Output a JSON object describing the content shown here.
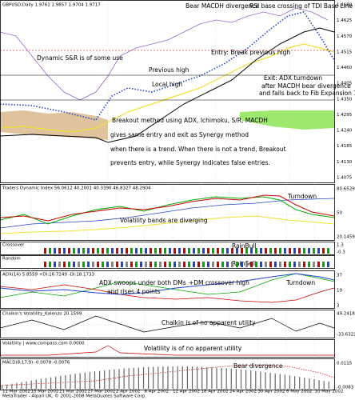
{
  "main": {
    "header": "GBPUSD,Daily  1.9761 1.9857 1.9704 1.9717",
    "axis_labels": [
      "1.4680",
      "1.4625",
      "1.4570",
      "1.4515",
      "1.4460",
      "1.4405",
      "1.4350",
      "1.4295",
      "1.4240",
      "1.4185",
      "1.4130",
      "1.4075"
    ],
    "annotations": [
      "Bear MACDH divergence",
      "RSI base crossing of TDI Base Line",
      "Dynamic S&R is of some use",
      "Entry: Break previous high",
      "Previous high",
      "Local high",
      "Exit: ADX turndown",
      "after MACDH bear divergence",
      "and falls back to Fib Expansion 100",
      "Breakout method using ADX, Ichimoku, S/R, MACDH",
      "gives same entry and exit as Synergy method",
      "when there is a trend. When there is not a trend, Breakout",
      "prevents entry, while Synergy indicates false entries."
    ]
  },
  "tdi": {
    "header": "Traders Dynamic Index 56.0612 40.2001 40.3390 46.8327 48.2904",
    "axis_labels": [
      "80.6529",
      "50",
      "20.1459"
    ],
    "annotations": [
      "Turndown",
      "Volatility bands are diverging"
    ]
  },
  "crossover": {
    "header": "Crossover",
    "axis_labels": [
      "1.3",
      "-0.3"
    ],
    "annotations": [
      "RainBull"
    ]
  },
  "random": {
    "header": "Random",
    "annotations": [
      "RainSell"
    ]
  },
  "adx": {
    "header": "ADX(14) 5.8559 +DI:16.7249 -DI:18.1733",
    "axis_labels": [
      "37",
      "19",
      "3"
    ],
    "annotations": [
      "ADX swoops under both DMs",
      "and rises 4 points",
      "+DM crossover high",
      "Turndown"
    ]
  },
  "chaikin": {
    "header": "Chaikin's Volatility_Kalenzo 20.1599",
    "axis_labels": [
      "49.2418",
      "-33.6321"
    ],
    "annotations": [
      "Chaikin is of no apparent utility"
    ]
  },
  "volatility": {
    "header": "Volatility | www.compass.com  0.0000",
    "annotations": [
      "Volatility is of no apparent utility"
    ]
  },
  "macd": {
    "header": "MACD(8,17,9) -0.0078 -0.0076",
    "axis_labels": [
      "0.0115",
      "-0.0083"
    ],
    "annotations": [
      "Bear divergence"
    ]
  },
  "dates": [
    "11 Mar 2002",
    "15 Mar 2002",
    "21 Mar 2002",
    "27 Mar 2002",
    "2 Apr 2002",
    "8 Apr 2002",
    "12 Apr 2002",
    "18 Apr 2002",
    "24 Apr 2002",
    "30 Apr 2002",
    "6 May 2002",
    "10 May 2002"
  ],
  "footer": "MetaTrader - Alpari UK, © 2001-2008 MetaQuotes Software Corp."
}
